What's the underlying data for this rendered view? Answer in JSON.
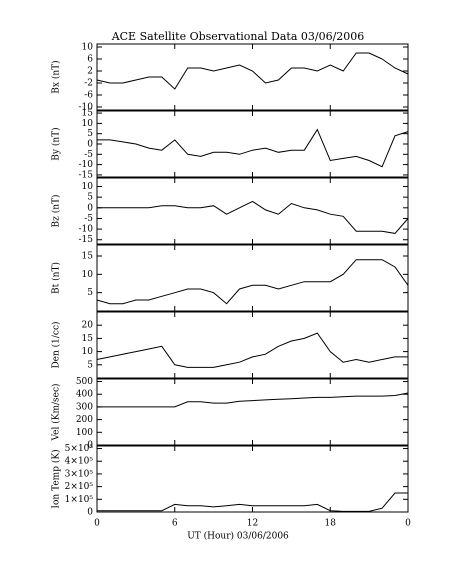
{
  "chart_data": [
    {
      "type": "line",
      "title": "ACE Satellite Observational Data   03/06/2006",
      "ylabel": "Bx (nT)",
      "x": [
        0,
        1,
        2,
        3,
        4,
        5,
        6,
        7,
        8,
        9,
        10,
        11,
        12,
        13,
        14,
        15,
        16,
        17,
        18,
        19,
        20,
        21,
        22,
        23,
        24
      ],
      "values": [
        -1,
        -2,
        -2,
        -1,
        0,
        0,
        -4,
        3,
        3,
        2,
        3,
        4,
        2,
        -2,
        -1,
        3,
        3,
        2,
        4,
        2,
        8,
        8,
        6,
        3,
        1
      ],
      "xlim": [
        0,
        24
      ],
      "ylim": [
        -11,
        11
      ],
      "yticks": [
        10,
        6,
        2,
        -2,
        -6,
        -10
      ]
    },
    {
      "type": "line",
      "ylabel": "By (nT)",
      "x": [
        0,
        1,
        2,
        3,
        4,
        5,
        6,
        7,
        8,
        9,
        10,
        11,
        12,
        13,
        14,
        15,
        16,
        17,
        18,
        19,
        20,
        21,
        22,
        23,
        24
      ],
      "values": [
        2,
        2,
        1,
        0,
        -2,
        -3,
        2,
        -5,
        -6,
        -4,
        -4,
        -5,
        -3,
        -2,
        -4,
        -3,
        -3,
        7,
        -8,
        -7,
        -6,
        -8,
        -11,
        4,
        6
      ],
      "xlim": [
        0,
        24
      ],
      "ylim": [
        -16,
        16
      ],
      "yticks": [
        15,
        10,
        5,
        0,
        -5,
        -10,
        -15
      ]
    },
    {
      "type": "line",
      "ylabel": "Bz (nT)",
      "x": [
        0,
        1,
        2,
        3,
        4,
        5,
        6,
        7,
        8,
        9,
        10,
        11,
        12,
        13,
        14,
        15,
        16,
        17,
        18,
        19,
        20,
        21,
        22,
        23,
        24
      ],
      "values": [
        0,
        0,
        0,
        0,
        0,
        1,
        1,
        0,
        0,
        1,
        -3,
        0,
        3,
        -1,
        -3,
        2,
        0,
        -1,
        -3,
        -4,
        -11,
        -11,
        -11,
        -12,
        -5
      ],
      "xlim": [
        0,
        24
      ],
      "ylim": [
        -17,
        14
      ],
      "yticks": [
        10,
        5,
        0,
        -5,
        -10,
        -15
      ]
    },
    {
      "type": "line",
      "ylabel": "Bt (nT)",
      "x": [
        0,
        1,
        2,
        3,
        4,
        5,
        6,
        7,
        8,
        9,
        10,
        11,
        12,
        13,
        14,
        15,
        16,
        17,
        18,
        19,
        20,
        21,
        22,
        23,
        24
      ],
      "values": [
        3,
        2,
        2,
        3,
        3,
        4,
        5,
        6,
        6,
        5,
        2,
        6,
        7,
        7,
        6,
        7,
        8,
        8,
        8,
        10,
        14,
        14,
        14,
        12,
        7
      ],
      "xlim": [
        0,
        24
      ],
      "ylim": [
        0,
        18
      ],
      "yticks": [
        5,
        10,
        15
      ]
    },
    {
      "type": "line",
      "ylabel": "Den (1/cc)",
      "x": [
        0,
        1,
        2,
        3,
        4,
        5,
        6,
        7,
        8,
        9,
        10,
        11,
        12,
        13,
        14,
        15,
        16,
        17,
        18,
        19,
        20,
        21,
        22,
        23,
        24
      ],
      "values": [
        7,
        8,
        9,
        10,
        11,
        12,
        5,
        4,
        4,
        4,
        5,
        6,
        8,
        9,
        12,
        14,
        15,
        17,
        10,
        6,
        7,
        6,
        7,
        8,
        8
      ],
      "xlim": [
        0,
        24
      ],
      "ylim": [
        0,
        25
      ],
      "yticks": [
        5,
        10,
        15,
        20
      ]
    },
    {
      "type": "line",
      "ylabel": "Vel (Km/sec)",
      "x": [
        0,
        1,
        2,
        3,
        4,
        5,
        6,
        7,
        8,
        9,
        10,
        11,
        12,
        13,
        14,
        15,
        16,
        17,
        18,
        19,
        20,
        21,
        22,
        23,
        24
      ],
      "values": [
        300,
        300,
        300,
        300,
        300,
        300,
        300,
        340,
        340,
        330,
        330,
        345,
        350,
        355,
        360,
        365,
        370,
        375,
        375,
        380,
        385,
        385,
        385,
        390,
        410
      ],
      "xlim": [
        0,
        24
      ],
      "ylim": [
        0,
        520
      ],
      "yticks": [
        0,
        100,
        200,
        300,
        400,
        500
      ]
    },
    {
      "type": "line",
      "ylabel": "Ion Temp (K)",
      "xlabel": "UT (Hour)   03/06/2006",
      "x": [
        0,
        1,
        2,
        3,
        4,
        5,
        6,
        7,
        8,
        9,
        10,
        11,
        12,
        13,
        14,
        15,
        16,
        17,
        18,
        19,
        20,
        21,
        22,
        23,
        24
      ],
      "values": [
        10000,
        10000,
        10000,
        10000,
        10000,
        10000,
        60000,
        50000,
        50000,
        40000,
        50000,
        60000,
        50000,
        50000,
        50000,
        50000,
        50000,
        60000,
        10000,
        5000,
        5000,
        5000,
        30000,
        150000,
        150000
      ],
      "xlim": [
        0,
        24
      ],
      "ylim": [
        0,
        520000
      ],
      "yticks": [
        0,
        {
          "value": 100000,
          "label": "1×10⁵"
        },
        {
          "value": 200000,
          "label": "2×10⁵"
        },
        {
          "value": 300000,
          "label": "3×10⁵"
        },
        {
          "value": 400000,
          "label": "4×10⁵"
        },
        {
          "value": 500000,
          "label": "5×10⁵"
        }
      ],
      "xticks": [
        0,
        6,
        12,
        18,
        {
          "value": 24,
          "label": "0"
        }
      ]
    }
  ]
}
